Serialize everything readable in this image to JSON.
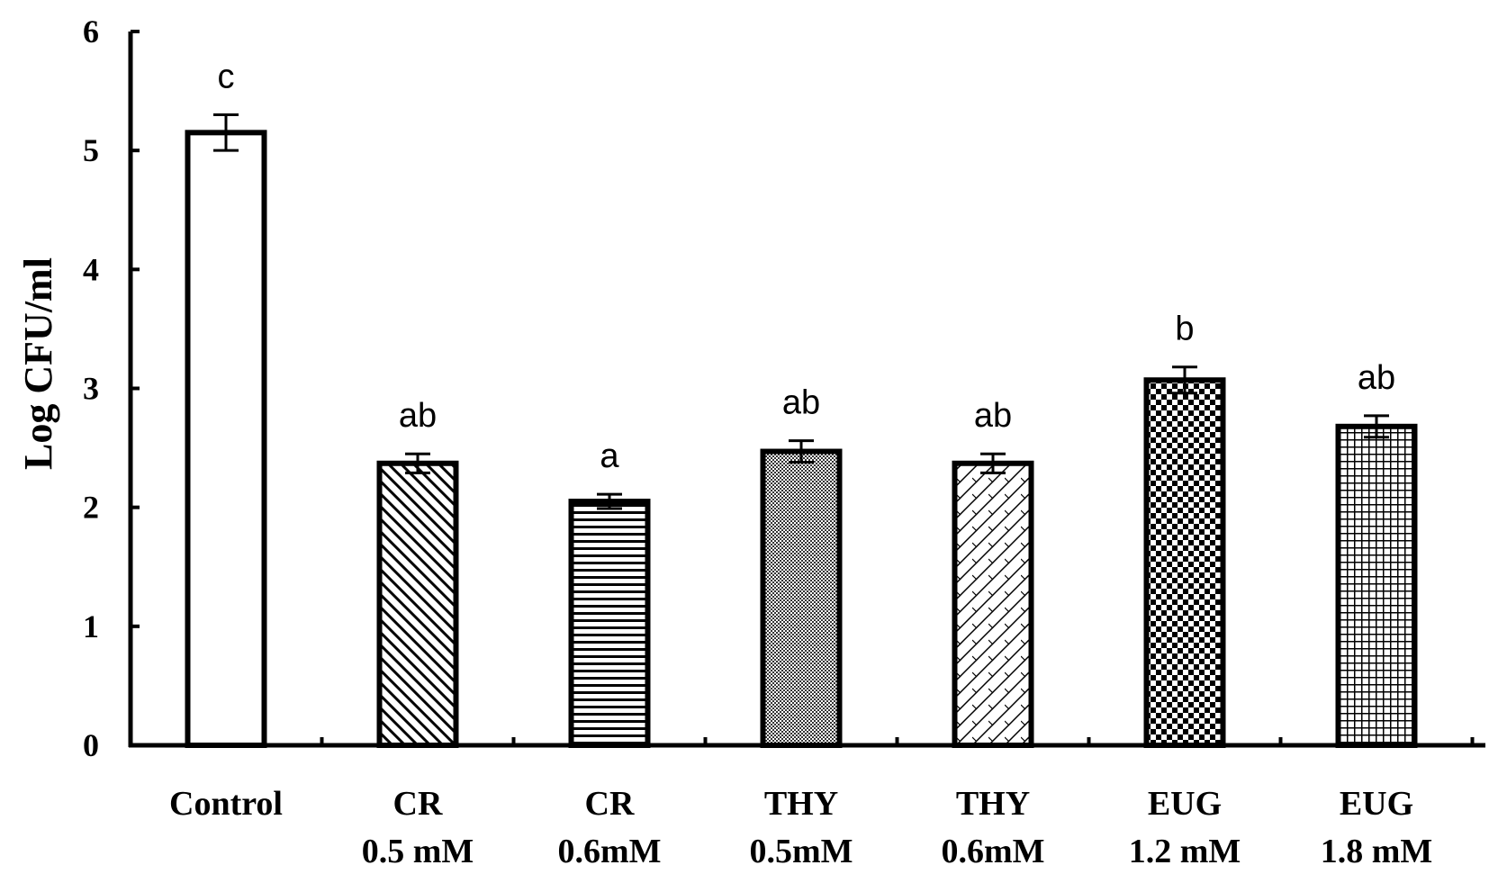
{
  "chart_data": {
    "type": "bar",
    "title": "",
    "xlabel": "",
    "ylabel": "Log CFU/ml",
    "ylim": [
      0,
      6
    ],
    "yticks": [
      "0",
      "1",
      "2",
      "3",
      "4",
      "5",
      "6"
    ],
    "grid": false,
    "categories": [
      {
        "line1": "Control",
        "line2": ""
      },
      {
        "line1": "CR",
        "line2": "0.5 mM"
      },
      {
        "line1": "CR",
        "line2": "0.6mM"
      },
      {
        "line1": "THY",
        "line2": "0.5mM"
      },
      {
        "line1": "THY",
        "line2": "0.6mM"
      },
      {
        "line1": "EUG",
        "line2": "1.2 mM"
      },
      {
        "line1": "EUG",
        "line2": "1.8 mM"
      }
    ],
    "values": [
      5.15,
      2.37,
      2.05,
      2.47,
      2.37,
      3.07,
      2.68
    ],
    "errors": [
      0.15,
      0.08,
      0.06,
      0.09,
      0.08,
      0.11,
      0.09
    ],
    "significance": [
      "c",
      "ab",
      "a",
      "ab",
      "ab",
      "b",
      "ab"
    ],
    "patterns": [
      "none",
      "diag-down",
      "horizontal",
      "dense-dots",
      "diag-light",
      "checker",
      "grid"
    ]
  }
}
